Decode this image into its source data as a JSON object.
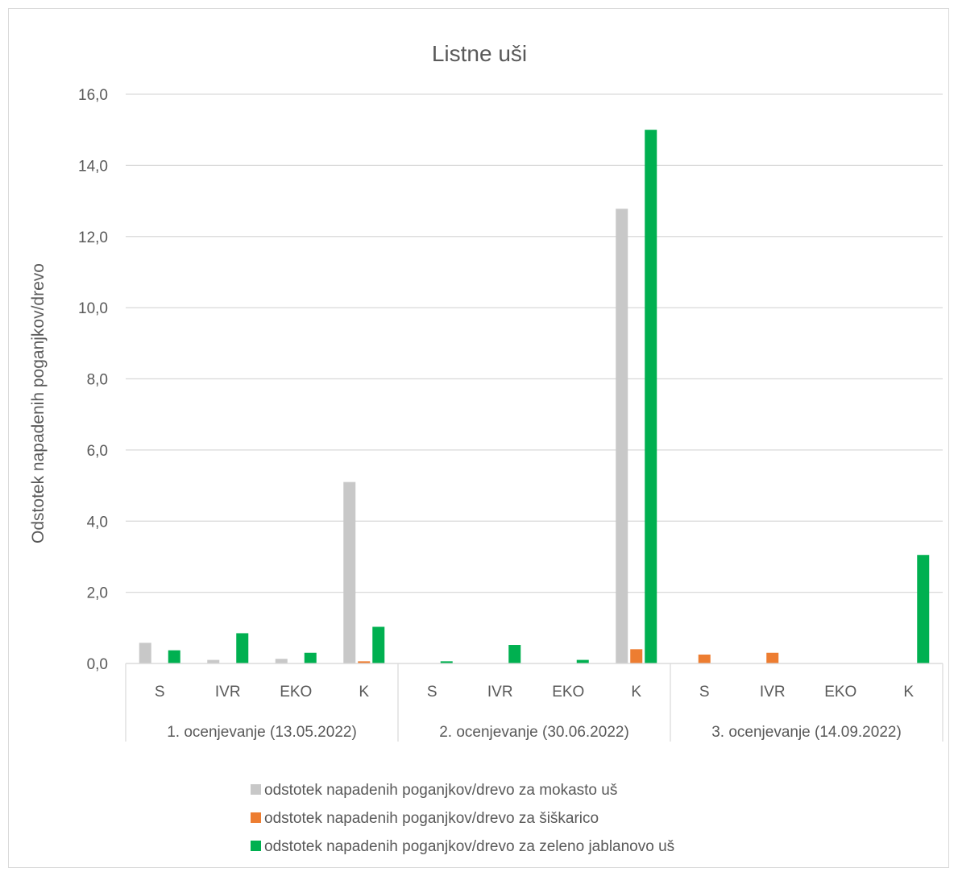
{
  "chart_data": {
    "type": "bar",
    "title": "Listne uši",
    "xlabel": "",
    "ylabel": "Odstotek napadenih poganjkov/drevo",
    "ylim": [
      0,
      16
    ],
    "y_ticks": [
      "0,0",
      "2,0",
      "4,0",
      "6,0",
      "8,0",
      "10,0",
      "12,0",
      "14,0",
      "16,0"
    ],
    "groups": [
      {
        "label": "1. ocenjevanje (13.05.2022)",
        "categories": [
          "S",
          "IVR",
          "EKO",
          "K"
        ]
      },
      {
        "label": "2. ocenjevanje (30.06.2022)",
        "categories": [
          "S",
          "IVR",
          "EKO",
          "K"
        ]
      },
      {
        "label": "3. ocenjevanje (14.09.2022)",
        "categories": [
          "S",
          "IVR",
          "EKO",
          "K"
        ]
      }
    ],
    "series": [
      {
        "name": "odstotek napadenih poganjkov/drevo za mokasto uš",
        "color": "#c8c8c8",
        "values": [
          0.58,
          0.1,
          0.13,
          5.1,
          0,
          0,
          0,
          12.78,
          0,
          0,
          0,
          0
        ]
      },
      {
        "name": "odstotek napadenih poganjkov/drevo za šiškarico",
        "color": "#ed7d31",
        "values": [
          0,
          0,
          0,
          0.06,
          0,
          0,
          0,
          0.4,
          0.25,
          0.3,
          0,
          0
        ]
      },
      {
        "name": "odstotek napadenih poganjkov/drevo za zeleno jablanovo uš",
        "color": "#00b050",
        "values": [
          0.37,
          0.85,
          0.3,
          1.03,
          0.06,
          0.52,
          0.1,
          15.0,
          0,
          0,
          0,
          3.05
        ]
      }
    ],
    "grid": true,
    "legend_position": "bottom"
  }
}
